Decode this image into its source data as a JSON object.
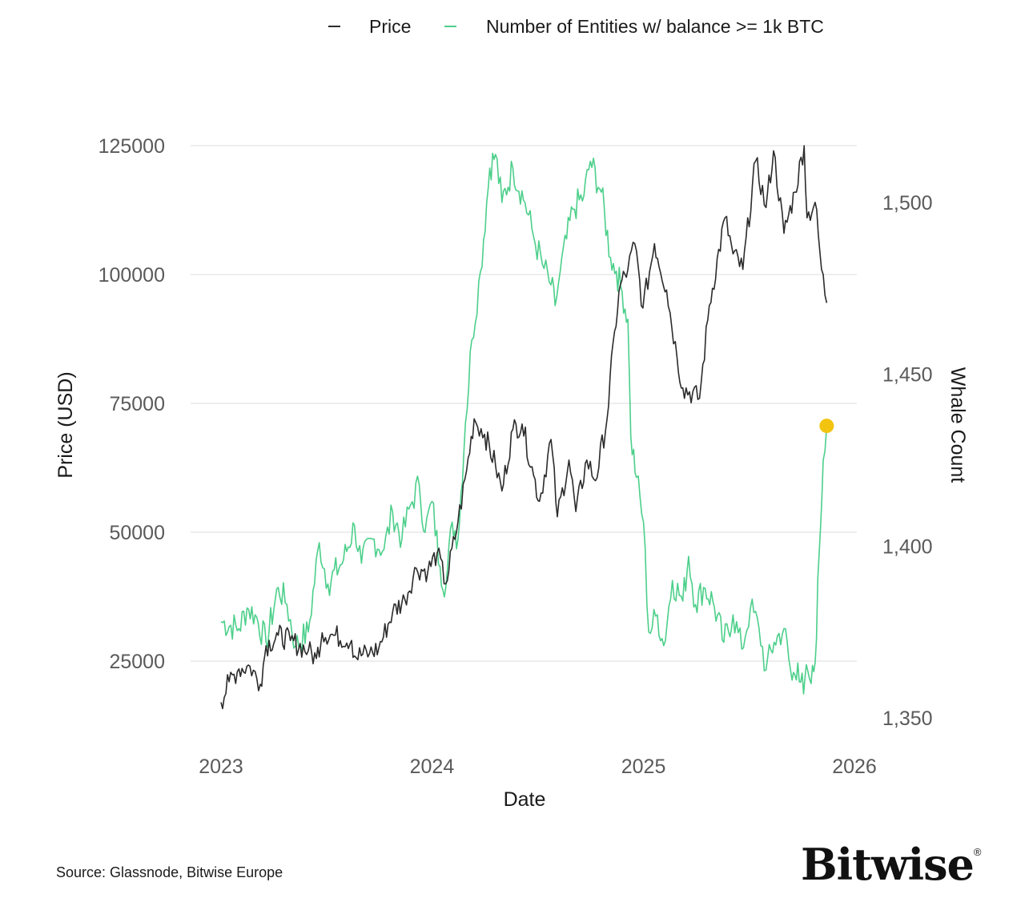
{
  "chart_data": {
    "type": "line",
    "title": "",
    "xlabel": "Date",
    "ylabel_left": "Price (USD)",
    "ylabel_right": "Whale Count",
    "x_ticks": [
      "2023",
      "2024",
      "2025",
      "2026"
    ],
    "xlim": [
      "2023-01-01",
      "2026-01-01"
    ],
    "y_left_ticks": [
      "125000",
      "100000",
      "75000",
      "50000",
      "25000"
    ],
    "y_left_ticks_values": [
      125000,
      100000,
      75000,
      50000,
      25000
    ],
    "ylim_left": [
      11000,
      125000
    ],
    "y_right_ticks": [
      "1,500",
      "1,450",
      "1,400",
      "1,350"
    ],
    "y_right_ticks_values": [
      1500,
      1450,
      1400,
      1350
    ],
    "ylim_right": [
      1350,
      1515
    ],
    "grid": "horizontal",
    "legend": {
      "position": "top"
    },
    "series": [
      {
        "name": "Price",
        "axis": "left",
        "color": "#2b2b2b",
        "points": [
          [
            "2023-01-01",
            17000
          ],
          [
            "2023-01-15",
            21000
          ],
          [
            "2023-02-01",
            23500
          ],
          [
            "2023-02-20",
            24000
          ],
          [
            "2023-03-10",
            20500
          ],
          [
            "2023-03-20",
            28000
          ],
          [
            "2023-04-10",
            30000
          ],
          [
            "2023-05-01",
            29000
          ],
          [
            "2023-06-01",
            27000
          ],
          [
            "2023-06-15",
            25500
          ],
          [
            "2023-06-25",
            30500
          ],
          [
            "2023-07-15",
            30000
          ],
          [
            "2023-08-15",
            29000
          ],
          [
            "2023-08-20",
            26000
          ],
          [
            "2023-09-15",
            26500
          ],
          [
            "2023-10-01",
            27500
          ],
          [
            "2023-10-25",
            34500
          ],
          [
            "2023-11-15",
            37000
          ],
          [
            "2023-12-05",
            43000
          ],
          [
            "2023-12-25",
            42500
          ],
          [
            "2024-01-10",
            46000
          ],
          [
            "2024-01-25",
            40000
          ],
          [
            "2024-02-15",
            52000
          ],
          [
            "2024-03-01",
            62000
          ],
          [
            "2024-03-14",
            72000
          ],
          [
            "2024-04-01",
            69000
          ],
          [
            "2024-04-20",
            63000
          ],
          [
            "2024-05-01",
            58000
          ],
          [
            "2024-05-20",
            70000
          ],
          [
            "2024-06-05",
            71000
          ],
          [
            "2024-06-25",
            61000
          ],
          [
            "2024-07-05",
            56000
          ],
          [
            "2024-07-25",
            68000
          ],
          [
            "2024-08-05",
            53000
          ],
          [
            "2024-08-25",
            64000
          ],
          [
            "2024-09-06",
            54000
          ],
          [
            "2024-09-25",
            64000
          ],
          [
            "2024-10-10",
            60000
          ],
          [
            "2024-10-30",
            72000
          ],
          [
            "2024-11-12",
            89000
          ],
          [
            "2024-11-22",
            98000
          ],
          [
            "2024-12-05",
            101000
          ],
          [
            "2024-12-17",
            106000
          ],
          [
            "2024-12-31",
            93500
          ],
          [
            "2025-01-20",
            106000
          ],
          [
            "2025-02-10",
            97000
          ],
          [
            "2025-02-28",
            84000
          ],
          [
            "2025-03-10",
            78000
          ],
          [
            "2025-04-08",
            76000
          ],
          [
            "2025-04-25",
            94000
          ],
          [
            "2025-05-22",
            111000
          ],
          [
            "2025-06-05",
            104000
          ],
          [
            "2025-06-22",
            101000
          ],
          [
            "2025-07-14",
            122000
          ],
          [
            "2025-08-01",
            113000
          ],
          [
            "2025-08-14",
            124000
          ],
          [
            "2025-09-01",
            108000
          ],
          [
            "2025-09-20",
            116000
          ],
          [
            "2025-10-06",
            125000
          ],
          [
            "2025-10-11",
            111000
          ],
          [
            "2025-10-25",
            114000
          ],
          [
            "2025-11-05",
            101000
          ],
          [
            "2025-11-14",
            94500
          ]
        ]
      },
      {
        "name": "Number of Entities w/ balance >= 1k BTC",
        "axis": "right",
        "color": "#4ccf8a",
        "points": [
          [
            "2023-01-01",
            1378
          ],
          [
            "2023-02-01",
            1376
          ],
          [
            "2023-02-15",
            1382
          ],
          [
            "2023-03-01",
            1380
          ],
          [
            "2023-03-20",
            1372
          ],
          [
            "2023-04-10",
            1388
          ],
          [
            "2023-04-25",
            1383
          ],
          [
            "2023-05-10",
            1371
          ],
          [
            "2023-06-01",
            1375
          ],
          [
            "2023-06-20",
            1401
          ],
          [
            "2023-07-05",
            1389
          ],
          [
            "2023-08-01",
            1396
          ],
          [
            "2023-08-20",
            1406
          ],
          [
            "2023-09-01",
            1395
          ],
          [
            "2023-09-20",
            1402
          ],
          [
            "2023-10-10",
            1399
          ],
          [
            "2023-10-25",
            1410
          ],
          [
            "2023-11-10",
            1402
          ],
          [
            "2023-11-25",
            1412
          ],
          [
            "2023-12-10",
            1418
          ],
          [
            "2023-12-20",
            1404
          ],
          [
            "2024-01-01",
            1413
          ],
          [
            "2024-01-15",
            1394
          ],
          [
            "2024-01-25",
            1388
          ],
          [
            "2024-02-05",
            1407
          ],
          [
            "2024-02-15",
            1402
          ],
          [
            "2024-02-28",
            1436
          ],
          [
            "2024-03-10",
            1460
          ],
          [
            "2024-03-25",
            1480
          ],
          [
            "2024-04-10",
            1510
          ],
          [
            "2024-04-20",
            1514
          ],
          [
            "2024-05-01",
            1500
          ],
          [
            "2024-05-20",
            1510
          ],
          [
            "2024-06-10",
            1500
          ],
          [
            "2024-06-25",
            1490
          ],
          [
            "2024-07-10",
            1482
          ],
          [
            "2024-07-25",
            1476
          ],
          [
            "2024-08-01",
            1470
          ],
          [
            "2024-08-10",
            1480
          ],
          [
            "2024-09-01",
            1498
          ],
          [
            "2024-09-20",
            1502
          ],
          [
            "2024-10-01",
            1512
          ],
          [
            "2024-10-20",
            1503
          ],
          [
            "2024-11-05",
            1484
          ],
          [
            "2024-11-15",
            1480
          ],
          [
            "2024-11-25",
            1474
          ],
          [
            "2024-12-05",
            1466
          ],
          [
            "2024-12-10",
            1432
          ],
          [
            "2024-12-20",
            1420
          ],
          [
            "2025-01-01",
            1407
          ],
          [
            "2025-01-10",
            1375
          ],
          [
            "2025-01-25",
            1380
          ],
          [
            "2025-02-05",
            1371
          ],
          [
            "2025-02-20",
            1390
          ],
          [
            "2025-03-10",
            1384
          ],
          [
            "2025-03-20",
            1397
          ],
          [
            "2025-04-01",
            1383
          ],
          [
            "2025-04-15",
            1388
          ],
          [
            "2025-05-01",
            1384
          ],
          [
            "2025-05-20",
            1372
          ],
          [
            "2025-06-05",
            1380
          ],
          [
            "2025-06-20",
            1370
          ],
          [
            "2025-07-05",
            1382
          ],
          [
            "2025-07-20",
            1376
          ],
          [
            "2025-08-01",
            1364
          ],
          [
            "2025-08-15",
            1372
          ],
          [
            "2025-09-01",
            1376
          ],
          [
            "2025-09-15",
            1361
          ],
          [
            "2025-09-25",
            1366
          ],
          [
            "2025-10-05",
            1357
          ],
          [
            "2025-10-12",
            1364
          ],
          [
            "2025-10-18",
            1360
          ],
          [
            "2025-10-25",
            1366
          ],
          [
            "2025-11-01",
            1398
          ],
          [
            "2025-11-08",
            1425
          ],
          [
            "2025-11-14",
            1435
          ]
        ]
      }
    ],
    "annotations": [
      {
        "type": "marker",
        "series": "Number of Entities w/ balance >= 1k BTC",
        "x": "2025-11-14",
        "y": 1435,
        "color": "#f2c40f"
      }
    ]
  },
  "footer": {
    "source": "Source: Glassnode, Bitwise Europe",
    "logo": "Bitwise",
    "logo_mark": "®"
  }
}
